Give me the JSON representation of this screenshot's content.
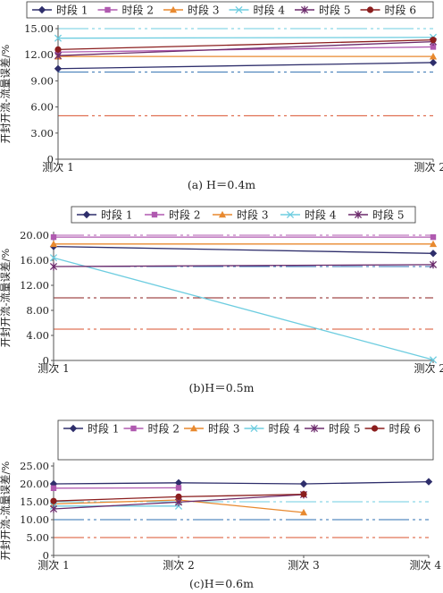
{
  "chart_data": [
    {
      "type": "line",
      "caption": "(a) H＝0.4m",
      "ylabel": "开封开流-流量误差/%",
      "categories": [
        "测次 1",
        "测次 2"
      ],
      "ylim": [
        0,
        15
      ],
      "yticks": [
        0,
        3.0,
        6.0,
        9.0,
        12.0,
        15.0
      ],
      "ytick_labels": [
        "0",
        "3.00",
        "6.00",
        "9.00",
        "12.00",
        "15.00"
      ],
      "series": [
        {
          "name": "时段 1",
          "color": "#2e2e6b",
          "marker": "diamond",
          "values": [
            10.4,
            11.1
          ]
        },
        {
          "name": "时段 2",
          "color": "#b05ab0",
          "marker": "square",
          "values": [
            12.3,
            12.9
          ]
        },
        {
          "name": "时段 3",
          "color": "#e8892f",
          "marker": "triangle",
          "values": [
            11.8,
            11.8
          ]
        },
        {
          "name": "时段 4",
          "color": "#6ecde0",
          "marker": "x",
          "values": [
            13.9,
            14.0
          ]
        },
        {
          "name": "时段 5",
          "color": "#6b2a6b",
          "marker": "star",
          "values": [
            11.9,
            13.5
          ]
        },
        {
          "name": "时段 6",
          "color": "#8b1e1e",
          "marker": "circle",
          "values": [
            12.6,
            13.7
          ]
        }
      ],
      "reference_lines": [
        {
          "value": 15,
          "color": "#6ecde0"
        },
        {
          "value": 10,
          "color": "#2e6fb0"
        },
        {
          "value": 5,
          "color": "#d9522e"
        }
      ]
    },
    {
      "type": "line",
      "caption": "(b)H＝0.5m",
      "ylabel": "开封开流-流量误差/%",
      "categories": [
        "测次 1",
        "测次 2"
      ],
      "ylim": [
        0,
        20
      ],
      "yticks": [
        0,
        4.0,
        8.0,
        12.0,
        16.0,
        20.0
      ],
      "ytick_labels": [
        "0",
        "4.00",
        "8.00",
        "12.00",
        "16.00",
        "20.00"
      ],
      "series": [
        {
          "name": "时段 1",
          "color": "#2e2e6b",
          "marker": "diamond",
          "values": [
            18.2,
            17.1
          ]
        },
        {
          "name": "时段 2",
          "color": "#b05ab0",
          "marker": "square",
          "values": [
            19.7,
            19.7
          ]
        },
        {
          "name": "时段 3",
          "color": "#e8892f",
          "marker": "triangle",
          "values": [
            18.6,
            18.6
          ]
        },
        {
          "name": "时段 4",
          "color": "#6ecde0",
          "marker": "x",
          "values": [
            16.4,
            0.1
          ]
        },
        {
          "name": "时段 5",
          "color": "#6b2a6b",
          "marker": "star",
          "values": [
            15.0,
            15.3
          ]
        }
      ],
      "reference_lines": [
        {
          "value": 20,
          "color": "#b05ab0"
        },
        {
          "value": 15,
          "color": "#2e6fb0"
        },
        {
          "value": 10,
          "color": "#8b1e1e"
        },
        {
          "value": 5,
          "color": "#d9522e"
        }
      ]
    },
    {
      "type": "line",
      "caption": "(c)H＝0.6m",
      "ylabel": "开封开流-流量误差/%",
      "categories": [
        "测次 1",
        "测次 2",
        "测次 3",
        "测次 4"
      ],
      "ylim": [
        0,
        25
      ],
      "yticks": [
        0,
        5.0,
        10.0,
        15.0,
        20.0,
        25.0
      ],
      "ytick_labels": [
        "0",
        "5.00",
        "10.00",
        "15.00",
        "20.00",
        "25.00"
      ],
      "series": [
        {
          "name": "时段 1",
          "color": "#2e2e6b",
          "marker": "diamond",
          "values": [
            20.0,
            20.3,
            20.0,
            20.6
          ]
        },
        {
          "name": "时段 2",
          "color": "#b05ab0",
          "marker": "square",
          "values": [
            18.8,
            18.9,
            null,
            null
          ]
        },
        {
          "name": "时段 3",
          "color": "#e8892f",
          "marker": "triangle",
          "values": [
            14.4,
            15.5,
            12.0,
            null
          ]
        },
        {
          "name": "时段 4",
          "color": "#6ecde0",
          "marker": "x",
          "values": [
            13.8,
            13.8,
            null,
            null
          ]
        },
        {
          "name": "时段 5",
          "color": "#6b2a6b",
          "marker": "star",
          "values": [
            13.0,
            14.9,
            17.0,
            null
          ]
        },
        {
          "name": "时段 6",
          "color": "#8b1e1e",
          "marker": "circle",
          "values": [
            15.2,
            16.4,
            17.1,
            null
          ]
        }
      ],
      "reference_lines": [
        {
          "value": 15,
          "color": "#6ecde0"
        },
        {
          "value": 10,
          "color": "#2e6fb0"
        },
        {
          "value": 5,
          "color": "#d9522e"
        }
      ]
    }
  ]
}
